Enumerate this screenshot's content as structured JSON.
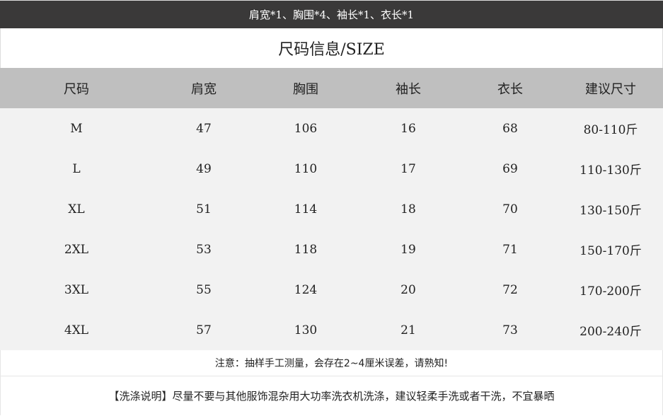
{
  "banner": "肩宽*1、胸围*4、袖长*1、衣长*1",
  "title": "尺码信息/SIZE",
  "headers": [
    "尺码",
    "肩宽",
    "胸围",
    "袖长",
    "衣长",
    "建议尺寸"
  ],
  "rows": [
    [
      "M",
      "47",
      "106",
      "16",
      "68",
      "80-110斤"
    ],
    [
      "L",
      "49",
      "110",
      "17",
      "69",
      "110-130斤"
    ],
    [
      "XL",
      "51",
      "114",
      "18",
      "70",
      "130-150斤"
    ],
    [
      "2XL",
      "53",
      "118",
      "19",
      "71",
      "150-170斤"
    ],
    [
      "3XL",
      "55",
      "124",
      "20",
      "72",
      "170-200斤"
    ],
    [
      "4XL",
      "57",
      "130",
      "21",
      "73",
      "200-240斤"
    ]
  ],
  "note": "注意：抽样手工测量，会存在2~4厘米误差，请熟知!",
  "wash": "【洗涤说明】尽量不要与其他服饰混杂用大功率洗衣机洗涤，建议轻柔手洗或者干洗，不宜暴晒"
}
